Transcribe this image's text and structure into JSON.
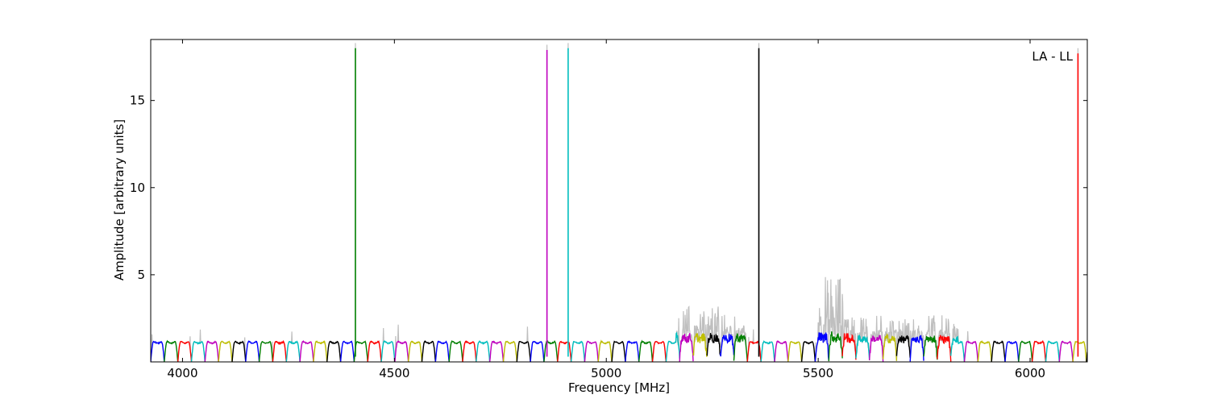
{
  "chart_data": {
    "type": "line",
    "xlabel": "Frequency [MHz]",
    "ylabel": "Amplitude [arbitrary units]",
    "annotation": "LA - LL",
    "annotation_position": "top-right",
    "xlim": [
      3925,
      6135
    ],
    "ylim": [
      0,
      18.5
    ],
    "xticks": [
      4000,
      4500,
      5000,
      5500,
      6000
    ],
    "yticks": [
      5,
      10,
      15
    ],
    "grid": false,
    "legend": "none",
    "colors": [
      "#0000ff",
      "#008000",
      "#ff0000",
      "#00bfbf",
      "#bf00bf",
      "#bfbf00",
      "#000000"
    ],
    "background_series_color": "#bfbfbf",
    "channel_width_mhz": 32,
    "channel_shape": "bandpass channels, amplitude ~1.1 flat top dipping to ~0 at channel edges",
    "spikes": [
      {
        "x": 4408,
        "y": 18.0,
        "color": "#008000"
      },
      {
        "x": 4860,
        "y": 17.9,
        "color": "#bf00bf"
      },
      {
        "x": 4910,
        "y": 18.0,
        "color": "#00bfbf"
      },
      {
        "x": 5360,
        "y": 18.0,
        "color": "#000000"
      },
      {
        "x": 6113,
        "y": 17.7,
        "color": "#ff0000"
      }
    ],
    "noisy_regions": [
      {
        "x": [
          5165,
          5330
        ],
        "peak": 3.3
      },
      {
        "x": [
          5500,
          5570
        ],
        "peak": 5.2
      },
      {
        "x": [
          5570,
          5830
        ],
        "peak": 2.8
      }
    ]
  }
}
